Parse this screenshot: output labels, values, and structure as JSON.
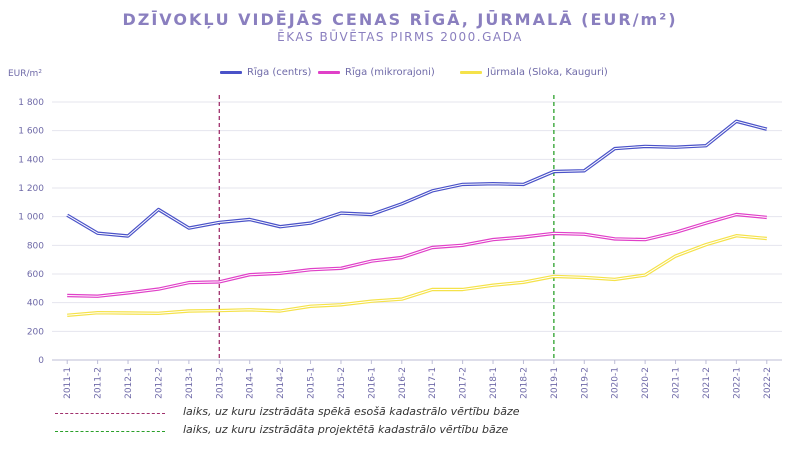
{
  "chart_data": {
    "type": "line",
    "title": "DZĪVOKĻU VIDĒJĀS CENAS RĪGĀ, JŪRMALĀ (EUR/m²)",
    "subtitle": "ĒKAS BŪVĒTAS PIRMS 2000.GADA",
    "ylabel": "EUR/m²",
    "ylim": [
      0,
      1800
    ],
    "yticks": [
      0,
      200,
      400,
      600,
      800,
      1000,
      1200,
      1400,
      1600,
      1800
    ],
    "ytick_labels": [
      "0",
      "200",
      "400",
      "600",
      "800",
      "1 000",
      "1 200",
      "1 400",
      "1 600",
      "1 800"
    ],
    "grid": true,
    "legend_position": "top",
    "categories": [
      "2011-1",
      "2011-2",
      "2012-1",
      "2012-2",
      "2013-1",
      "2013-2",
      "2014-1",
      "2014-2",
      "2015-1",
      "2015-2",
      "2016-1",
      "2016-2",
      "2017-1",
      "2017-2",
      "2018-1",
      "2018-2",
      "2019-1",
      "2019-2",
      "2020-1",
      "2020-2",
      "2021-1",
      "2021-2",
      "2022-1",
      "2022-2"
    ],
    "series": [
      {
        "name": "Rīga (centrs)",
        "color": "#4a52c8",
        "values": [
          1010,
          885,
          865,
          1050,
          920,
          960,
          980,
          930,
          955,
          1025,
          1015,
          1090,
          1180,
          1225,
          1230,
          1225,
          1315,
          1320,
          1475,
          1490,
          1485,
          1495,
          1665,
          1610
        ]
      },
      {
        "name": "Rīga (mikrorajoni)",
        "color": "#e040c8",
        "values": [
          450,
          445,
          468,
          495,
          540,
          545,
          595,
          605,
          630,
          640,
          690,
          715,
          785,
          800,
          840,
          858,
          883,
          878,
          845,
          840,
          890,
          955,
          1015,
          995
        ]
      },
      {
        "name": "Jūrmala (Sloka, Kauguri)",
        "color": "#f5e24a",
        "values": [
          312,
          330,
          328,
          326,
          342,
          345,
          350,
          342,
          375,
          385,
          410,
          425,
          492,
          492,
          522,
          542,
          583,
          576,
          562,
          592,
          725,
          805,
          867,
          848
        ]
      }
    ],
    "vlines": [
      {
        "at": "2013-2",
        "color": "#a0306c",
        "label": "laiks, uz kuru izstrādāta spēkā esošā kadastrālo vērtību bāze"
      },
      {
        "at": "2019-1",
        "color": "#2aa02a",
        "label": "laiks, uz kuru izstrādāta projektētā kadastrālo vērtību bāze"
      }
    ]
  }
}
